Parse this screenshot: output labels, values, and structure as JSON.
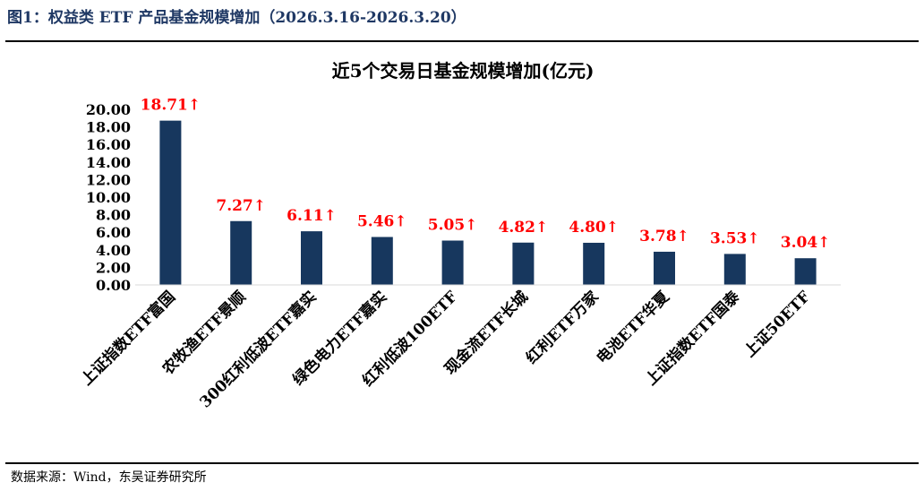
{
  "figure_title": "图1：权益类 ETF 产品基金规模增加（2026.3.16-2026.3.20）",
  "source_note": "数据来源：Wind，东吴证券研究所",
  "colors": {
    "bar": "#17375e",
    "label": "#ff0000",
    "title_text": "#1f3864"
  },
  "chart_data": {
    "type": "bar",
    "title": "近5个交易日基金规模增加(亿元)",
    "categories": [
      "上证指数ETF富国",
      "农牧渔ETF景顺",
      "300红利低波ETF嘉实",
      "绿色电力ETF嘉实",
      "红利低波100ETF",
      "现金流ETF长城",
      "红利ETF万家",
      "电池ETF华夏",
      "上证指数ETF国泰",
      "上证50ETF"
    ],
    "values": [
      18.71,
      7.27,
      6.11,
      5.46,
      5.05,
      4.82,
      4.8,
      3.78,
      3.53,
      3.04
    ],
    "data_labels": [
      "18.71↑",
      "7.27↑",
      "6.11↑",
      "5.46↑",
      "5.05↑",
      "4.82↑",
      "4.80↑",
      "3.78↑",
      "3.53↑",
      "3.04↑"
    ],
    "y_ticks": [
      "0.00",
      "2.00",
      "4.00",
      "6.00",
      "8.00",
      "10.00",
      "12.00",
      "14.00",
      "16.00",
      "18.00",
      "20.00"
    ],
    "ylim": [
      0,
      20
    ],
    "grid": false,
    "legend": "none"
  }
}
